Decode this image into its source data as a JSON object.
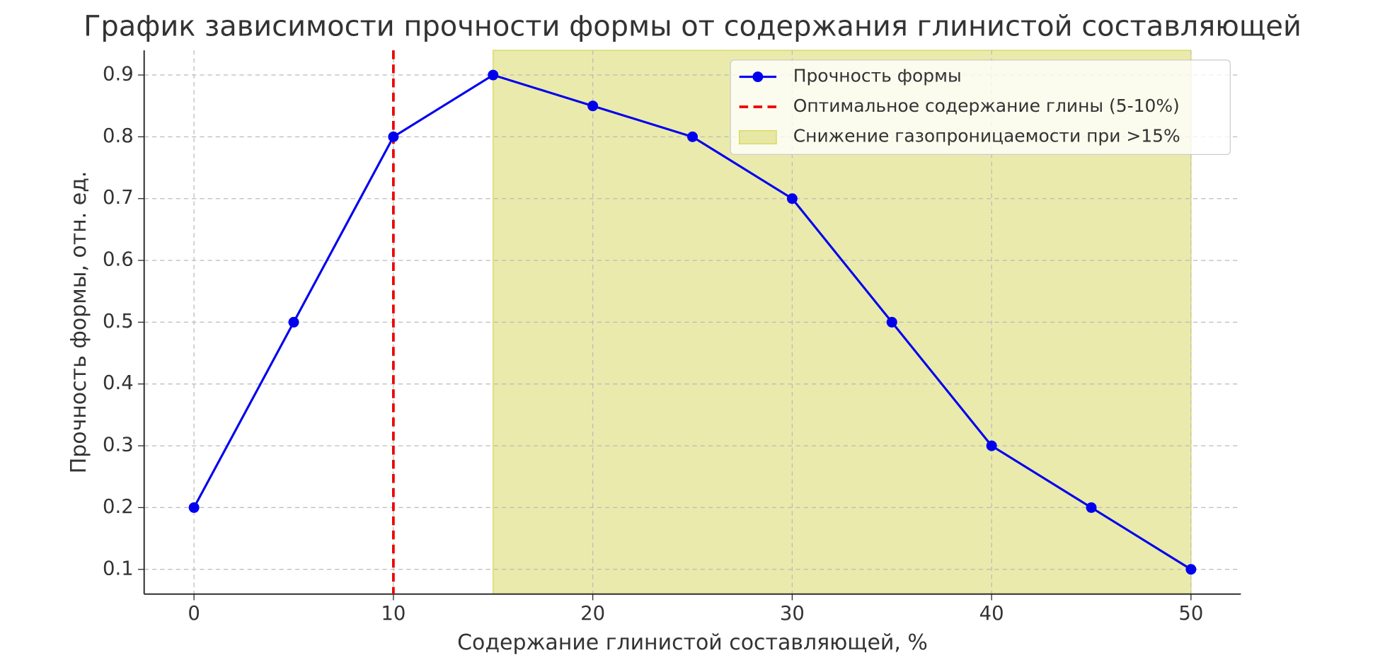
{
  "chart_data": {
    "type": "line",
    "title": "График зависимости прочности формы от содержания глинистой составляющей",
    "x_label": "Содержание глинистой составляющей, %",
    "y_label": "Прочность формы, отн. ед.",
    "x": [
      0,
      5,
      10,
      15,
      20,
      25,
      30,
      35,
      40,
      45,
      50
    ],
    "series": [
      {
        "name": "Прочность формы",
        "color": "#0000ee",
        "values": [
          0.2,
          0.5,
          0.8,
          0.9,
          0.85,
          0.8,
          0.7,
          0.5,
          0.3,
          0.2,
          0.1
        ]
      }
    ],
    "vlines": [
      {
        "x": 10,
        "name": "Оптимальное содержание глины (5-10%)",
        "color": "#ee0000"
      }
    ],
    "spans": [
      {
        "xmin": 15,
        "xmax": 50,
        "name": "Снижение газопроницаемости при >15%",
        "color": "#d6d65a"
      }
    ],
    "xlim": [
      -2.5,
      52.5
    ],
    "ylim": [
      0.06,
      0.94
    ],
    "xticks": [
      0,
      10,
      20,
      30,
      40,
      50
    ],
    "yticks": [
      0.1,
      0.2,
      0.3,
      0.4,
      0.5,
      0.6,
      0.7,
      0.8,
      0.9
    ],
    "grid": true,
    "legend": "upper-right"
  }
}
